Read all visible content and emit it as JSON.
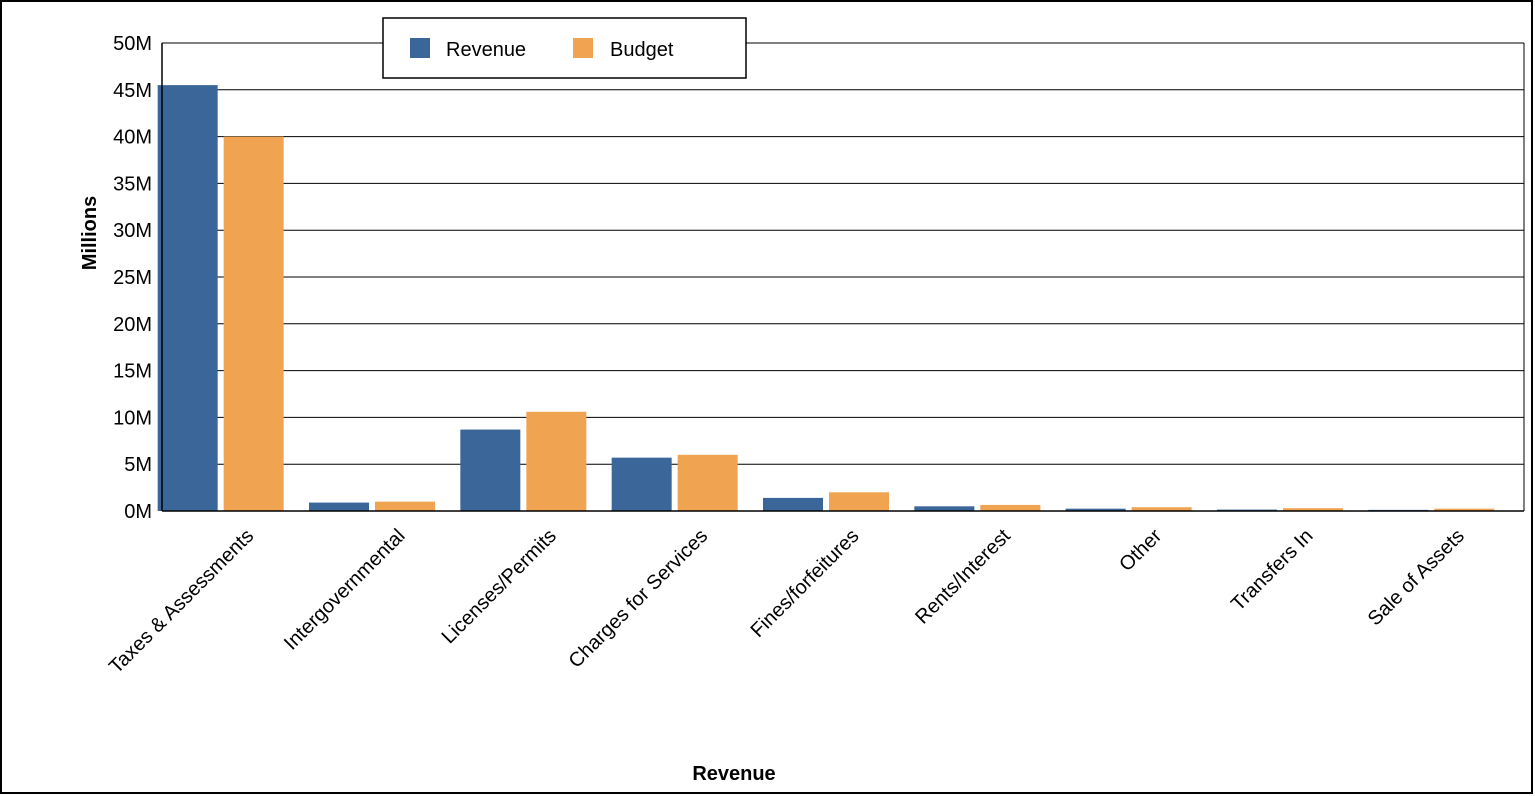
{
  "chart_data": {
    "type": "bar",
    "title": "",
    "xlabel": "Revenue",
    "ylabel": "Millions",
    "ylim": [
      0,
      50000000
    ],
    "y_ticks": [
      {
        "value": 0,
        "label": "0M"
      },
      {
        "value": 5000000,
        "label": "5M"
      },
      {
        "value": 10000000,
        "label": "10M"
      },
      {
        "value": 15000000,
        "label": "15M"
      },
      {
        "value": 20000000,
        "label": "20M"
      },
      {
        "value": 25000000,
        "label": "25M"
      },
      {
        "value": 30000000,
        "label": "30M"
      },
      {
        "value": 35000000,
        "label": "35M"
      },
      {
        "value": 40000000,
        "label": "40M"
      },
      {
        "value": 45000000,
        "label": "45M"
      },
      {
        "value": 50000000,
        "label": "50M"
      }
    ],
    "grid": true,
    "legend_position": "top-left",
    "categories": [
      "Taxes & Assessments",
      "Intergovernmental",
      "Licenses/Permits",
      "Charges for Services",
      "Fines/forfeitures",
      "Rents/Interest",
      "Other",
      "Transfers In",
      "Sale of Assets"
    ],
    "series": [
      {
        "name": "Revenue",
        "color": "#3b6699",
        "values": [
          45500000,
          900000,
          8700000,
          5700000,
          1400000,
          500000,
          250000,
          150000,
          120000
        ]
      },
      {
        "name": "Budget",
        "color": "#f0a351",
        "values": [
          40000000,
          1000000,
          10600000,
          6000000,
          2000000,
          650000,
          400000,
          300000,
          250000
        ]
      }
    ]
  }
}
